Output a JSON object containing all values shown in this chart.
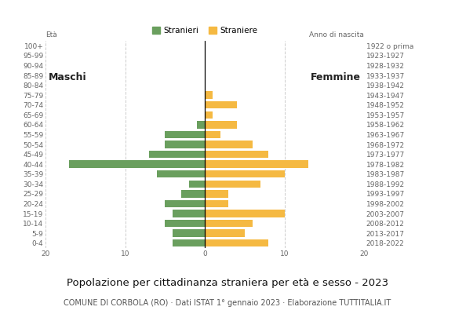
{
  "age_groups": [
    "0-4",
    "5-9",
    "10-14",
    "15-19",
    "20-24",
    "25-29",
    "30-34",
    "35-39",
    "40-44",
    "45-49",
    "50-54",
    "55-59",
    "60-64",
    "65-69",
    "70-74",
    "75-79",
    "80-84",
    "85-89",
    "90-94",
    "95-99",
    "100+"
  ],
  "birth_years": [
    "2018-2022",
    "2013-2017",
    "2008-2012",
    "2003-2007",
    "1998-2002",
    "1993-1997",
    "1988-1992",
    "1983-1987",
    "1978-1982",
    "1973-1977",
    "1968-1972",
    "1963-1967",
    "1958-1962",
    "1953-1957",
    "1948-1952",
    "1943-1947",
    "1938-1942",
    "1933-1937",
    "1928-1932",
    "1923-1927",
    "1922 o prima"
  ],
  "males": [
    4,
    4,
    5,
    4,
    5,
    3,
    2,
    6,
    17,
    7,
    5,
    5,
    1,
    0,
    0,
    0,
    0,
    0,
    0,
    0,
    0
  ],
  "females": [
    8,
    5,
    6,
    10,
    3,
    3,
    7,
    10,
    13,
    8,
    6,
    2,
    4,
    1,
    4,
    1,
    0,
    0,
    0,
    0,
    0
  ],
  "male_color": "#6a9f5e",
  "female_color": "#f5b942",
  "background_color": "#ffffff",
  "grid_color": "#cccccc",
  "title": "Popolazione per cittadinanza straniera per età e sesso - 2023",
  "subtitle": "COMUNE DI CORBOLA (RO) · Dati ISTAT 1° gennaio 2023 · Elaborazione TUTTITALIA.IT",
  "legend_male": "Stranieri",
  "legend_female": "Straniere",
  "label_maschi": "Maschi",
  "label_femmine": "Femmine",
  "ylabel_left": "Età",
  "ylabel_right": "Anno di nascita",
  "xlim": 20,
  "title_fontsize": 9.5,
  "subtitle_fontsize": 7,
  "tick_fontsize": 6.5,
  "label_fontsize": 9
}
